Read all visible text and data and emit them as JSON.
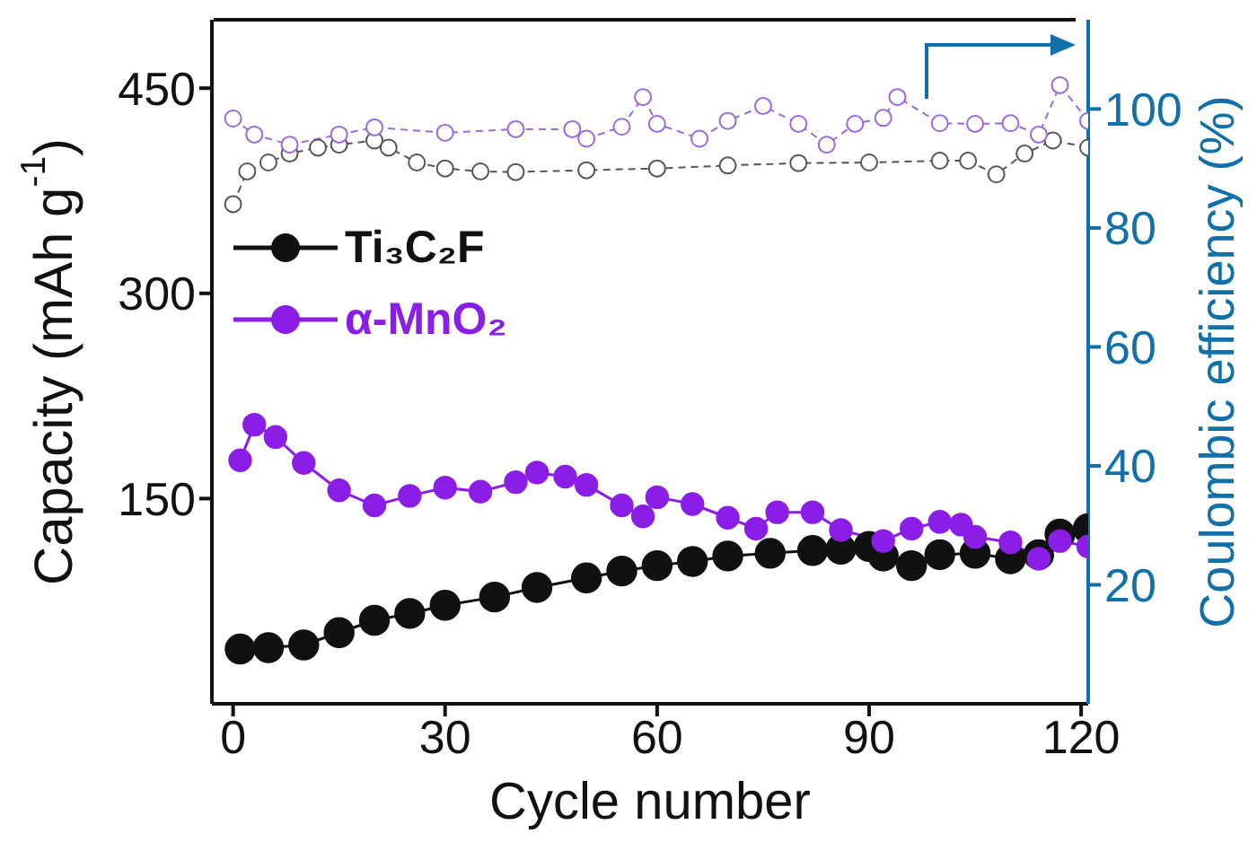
{
  "chart_data": {
    "type": "line",
    "xlabel": "Cycle number",
    "ylabel": "Capacity (mAh g$^{-1}$)",
    "y2label": "Coulombic efficiency (%)",
    "xlim": [
      -3,
      121
    ],
    "xticks": [
      0,
      30,
      60,
      90,
      120
    ],
    "ylim": [
      0,
      500
    ],
    "yticks": [
      150,
      300,
      450
    ],
    "y2lim": [
      0,
      115
    ],
    "y2ticks": [
      20,
      40,
      60,
      80,
      100
    ],
    "legend": "top left",
    "marker": "circle",
    "series": [
      {
        "name": "Ti₃C₂F",
        "color": "#111111",
        "x": [
          1,
          5,
          10,
          15,
          20,
          25,
          30,
          37,
          43,
          50,
          55,
          60,
          65,
          70,
          76,
          82,
          86,
          90,
          92,
          96,
          100,
          105,
          110,
          114,
          117,
          121
        ],
        "values": [
          40,
          41,
          43,
          52,
          61,
          66,
          72,
          78,
          85,
          92,
          97,
          101,
          104,
          108,
          110,
          112,
          113,
          115,
          108,
          101,
          109,
          110,
          106,
          109,
          124,
          128
        ]
      },
      {
        "name": "α-MnO₂",
        "color": "#8a1ee6",
        "x": [
          1,
          3,
          6,
          10,
          15,
          20,
          25,
          30,
          35,
          40,
          43,
          47,
          50,
          55,
          58,
          60,
          65,
          70,
          74,
          77,
          82,
          86,
          92,
          96,
          100,
          103,
          105,
          110,
          114,
          117,
          121
        ],
        "values": [
          178,
          204,
          195,
          176,
          156,
          145,
          152,
          158,
          155,
          162,
          169,
          166,
          160,
          145,
          137,
          151,
          146,
          136,
          128,
          140,
          140,
          127,
          119,
          128,
          133,
          131,
          122,
          118,
          106,
          119,
          115
        ]
      },
      {
        "color": "#555555",
        "axis": "y2",
        "line_style": "dashed",
        "x": [
          0,
          2,
          5,
          8,
          12,
          15,
          20,
          22,
          26,
          30,
          35,
          40,
          50,
          60,
          70,
          80,
          90,
          100,
          104,
          108,
          112,
          116,
          121
        ],
        "values": [
          84,
          89.5,
          91,
          92.5,
          93.5,
          94,
          94.7,
          93.5,
          91,
          90,
          89.5,
          89.4,
          89.7,
          90,
          90.5,
          90.9,
          91,
          91.3,
          91.3,
          89,
          92.5,
          94.7,
          93.5
        ]
      },
      {
        "color": "#9a6ad8",
        "axis": "y2",
        "line_style": "dashed",
        "x": [
          0,
          3,
          8,
          15,
          20,
          30,
          40,
          48,
          50,
          55,
          58,
          60,
          66,
          70,
          75,
          80,
          84,
          88,
          92,
          94,
          100,
          105,
          110,
          114,
          117,
          121
        ],
        "values": [
          98.4,
          95.7,
          94,
          95.7,
          96.9,
          96,
          96.6,
          96.6,
          95,
          97,
          102,
          97.5,
          95,
          98,
          100.5,
          97.5,
          94,
          97.5,
          98.5,
          102,
          97.6,
          97.5,
          97.6,
          95.7,
          104,
          98
        ]
      }
    ]
  }
}
